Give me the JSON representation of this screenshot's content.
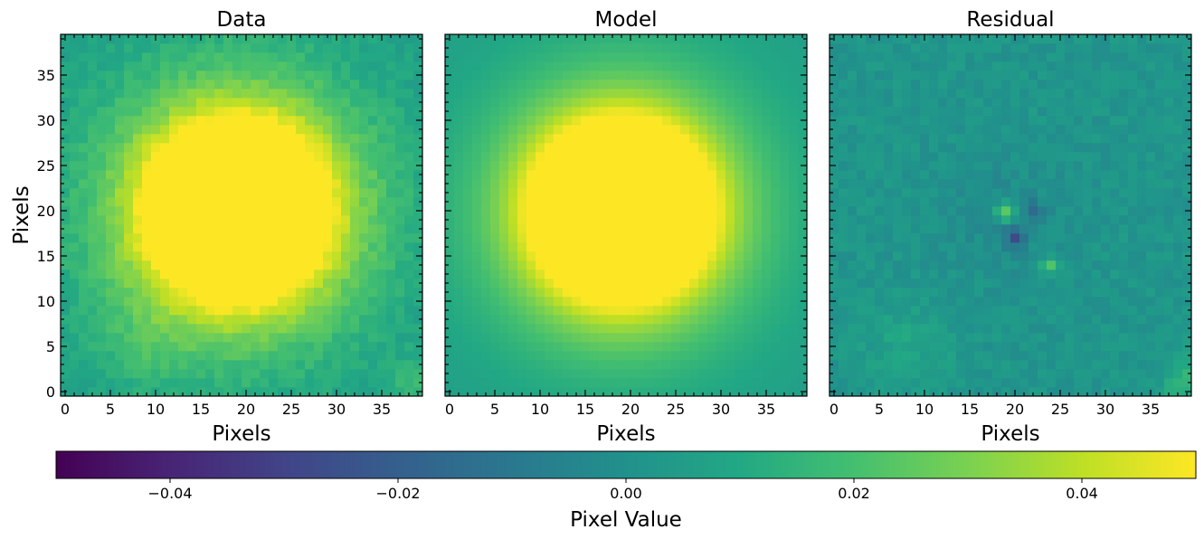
{
  "chart_data": {
    "type": "heatmap",
    "colormap": "viridis",
    "grid": false,
    "panels": [
      {
        "title": "Data",
        "xlabel": "Pixels",
        "ylabel": "Pixels",
        "xlim": [
          -0.5,
          39.5
        ],
        "ylim": [
          -0.5,
          39.5
        ],
        "xticks": [
          0,
          5,
          10,
          15,
          20,
          25,
          30,
          35
        ],
        "yticks": [
          0,
          5,
          10,
          15,
          20,
          25,
          30,
          35
        ],
        "kind": "data",
        "source": {
          "center_x": 19.0,
          "center_y": 20.0,
          "core_radius": 10.2,
          "peak_fraction": 1.0
        }
      },
      {
        "title": "Model",
        "xlabel": "Pixels",
        "ylabel": "",
        "xlim": [
          -0.5,
          39.5
        ],
        "ylim": [
          -0.5,
          39.5
        ],
        "xticks": [
          0,
          5,
          10,
          15,
          20,
          25,
          30,
          35
        ],
        "yticks": [],
        "kind": "model",
        "source": {
          "center_x": 19.0,
          "center_y": 20.0,
          "core_radius": 10.2,
          "peak_fraction": 1.0
        }
      },
      {
        "title": "Residual",
        "xlabel": "Pixels",
        "ylabel": "",
        "xlim": [
          -0.5,
          39.5
        ],
        "ylim": [
          -0.5,
          39.5
        ],
        "xticks": [
          0,
          5,
          10,
          15,
          20,
          25,
          30,
          35
        ],
        "yticks": [],
        "kind": "residual",
        "features": [
          {
            "x": 19,
            "y": 20,
            "value": 0.028
          },
          {
            "x": 20,
            "y": 17,
            "value": -0.022
          },
          {
            "x": 24,
            "y": 14,
            "value": 0.02
          },
          {
            "x": 22,
            "y": 20,
            "value": -0.014
          }
        ]
      }
    ],
    "colorbar": {
      "label": "Pixel Value",
      "vmin": -0.05,
      "vmax": 0.05,
      "ticks": [
        -0.04,
        -0.02,
        0.0,
        0.02,
        0.04
      ],
      "tick_labels": [
        "−0.04",
        "−0.02",
        "0.00",
        "0.02",
        "0.04"
      ],
      "orientation": "horizontal",
      "placement": "bottom"
    }
  }
}
